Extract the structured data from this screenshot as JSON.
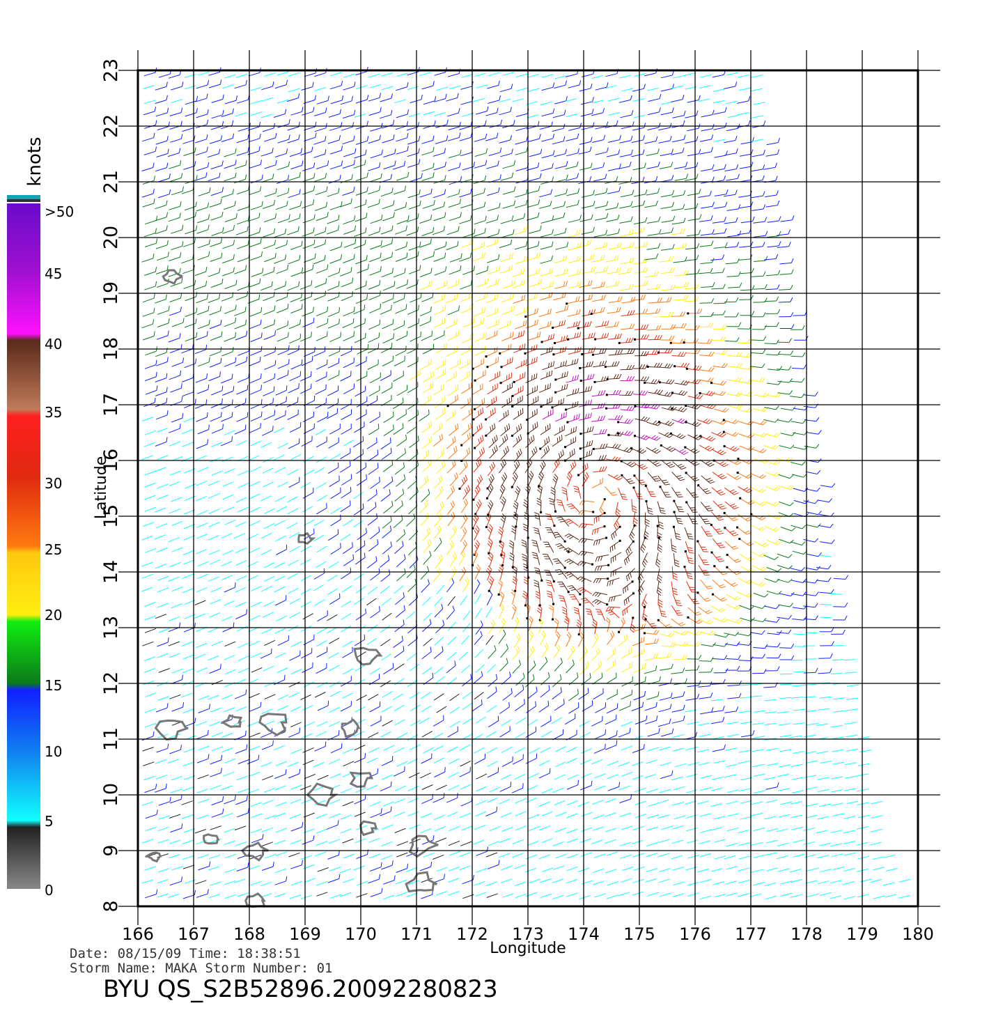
{
  "map": {
    "lon_range": [
      166,
      180
    ],
    "lat_range": [
      8,
      23
    ],
    "lon_ticks": [
      "166",
      "167",
      "168",
      "169",
      "170",
      "171",
      "172",
      "173",
      "174",
      "175",
      "176",
      "177",
      "178",
      "179",
      "180"
    ],
    "lat_ticks": [
      "8",
      "9",
      "10",
      "11",
      "12",
      "13",
      "14",
      "15",
      "16",
      "17",
      "18",
      "19",
      "20",
      "21",
      "22",
      "23"
    ],
    "xlabel": "Longitude",
    "ylabel": "Latitude",
    "grid": true
  },
  "colorbar": {
    "unit": "knots",
    "labels": [
      ">50",
      "45",
      "40",
      "35",
      "30",
      "25",
      "20",
      "15",
      "10",
      "5",
      "0"
    ],
    "colors": {
      "purple": "#6a0ccc",
      "magenta": "#ff10ff",
      "brown": "#5a2a1a",
      "red": "#ff2020",
      "orange": "#ff7a10",
      "yellow": "#ffee10",
      "green": "#10ee10",
      "dark_green": "#0a7a1a",
      "blue": "#1020ff",
      "cyan": "#10ffff",
      "black": "#222222",
      "gray": "#888888"
    }
  },
  "info": {
    "date_line": "Date: 08/15/09   Time: 18:38:51",
    "storm_line": "Storm  Name: MAKA    Storm  Number: 01",
    "title": "BYU  QS_S2B52896.20092280823"
  },
  "storm": {
    "center_lon": 174.2,
    "center_lat": 15.4
  },
  "islands": [
    {
      "lon": 169.0,
      "lat": 14.6
    },
    {
      "lon": 170.1,
      "lat": 12.5
    },
    {
      "lon": 167.7,
      "lat": 11.3
    },
    {
      "lon": 166.6,
      "lat": 11.2
    },
    {
      "lon": 168.4,
      "lat": 11.3
    },
    {
      "lon": 169.8,
      "lat": 11.2
    },
    {
      "lon": 170.0,
      "lat": 10.3
    },
    {
      "lon": 169.3,
      "lat": 10.0
    },
    {
      "lon": 170.1,
      "lat": 9.4
    },
    {
      "lon": 171.1,
      "lat": 9.1
    },
    {
      "lon": 171.1,
      "lat": 8.4
    },
    {
      "lon": 167.3,
      "lat": 9.2
    },
    {
      "lon": 168.1,
      "lat": 9.0
    },
    {
      "lon": 166.3,
      "lat": 8.9
    },
    {
      "lon": 168.1,
      "lat": 8.1
    },
    {
      "lon": 166.6,
      "lat": 19.3
    }
  ]
}
